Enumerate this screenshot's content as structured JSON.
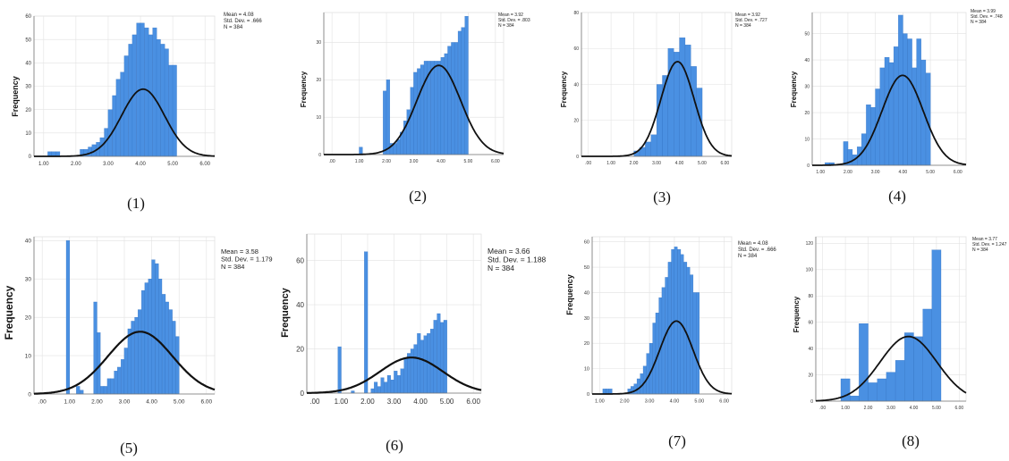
{
  "colors": {
    "bar": "#4a90e2",
    "bar_edge": "#2f6fc0",
    "curve": "#111111",
    "axis": "#777777",
    "grid": "#e2e2e2"
  },
  "chart_data": [
    {
      "type": "bar",
      "panel_label": "(1)",
      "ylabel": "Frequency",
      "xticks": [
        "1.00",
        "2.00",
        "3.00",
        "4.00",
        "5.00",
        "6.00"
      ],
      "yticks": [
        "0",
        "10",
        "20",
        "30",
        "40",
        "50",
        "60"
      ],
      "xlim": [
        0.7,
        6.3
      ],
      "ylim": [
        0,
        60
      ],
      "bin_width": 0.125,
      "x": [
        1.19,
        1.31,
        1.44,
        2.19,
        2.31,
        2.44,
        2.56,
        2.69,
        2.81,
        2.94,
        3.06,
        3.19,
        3.31,
        3.44,
        3.56,
        3.69,
        3.81,
        3.94,
        4.06,
        4.19,
        4.31,
        4.44,
        4.56,
        4.69,
        4.81,
        4.94,
        5.06
      ],
      "values": [
        2,
        2,
        2,
        3,
        3,
        4,
        5,
        6,
        8,
        12,
        20,
        26,
        33,
        36,
        43,
        48,
        52,
        57,
        57,
        55,
        52,
        55,
        50,
        48,
        46,
        39,
        39
      ],
      "curve": {
        "mean": 4.08,
        "sd": 0.666,
        "n": 384
      },
      "stats": [
        "Mean = 4.08",
        "Std. Dev. = .666",
        "N = 384"
      ]
    },
    {
      "type": "bar",
      "panel_label": "(2)",
      "ylabel": "Frequency",
      "xticks": [
        ".00",
        "1.00",
        "2.00",
        "3.00",
        "4.00",
        "5.00",
        "6.00"
      ],
      "yticks": [
        "0",
        "10",
        "20",
        "30"
      ],
      "xlim": [
        -0.3,
        6.3
      ],
      "ylim": [
        0,
        38
      ],
      "bin_width": 0.125,
      "x": [
        1.06,
        1.94,
        2.06,
        2.19,
        2.31,
        2.44,
        2.56,
        2.69,
        2.81,
        2.94,
        3.06,
        3.19,
        3.31,
        3.44,
        3.56,
        3.69,
        3.81,
        3.94,
        4.06,
        4.19,
        4.31,
        4.44,
        4.56,
        4.69,
        4.81,
        4.94
      ],
      "values": [
        2,
        17,
        20,
        3,
        3,
        4,
        6,
        9,
        12,
        18,
        22,
        23,
        24,
        25,
        25,
        25,
        25,
        25,
        26,
        27,
        29,
        30,
        30,
        33,
        34,
        37
      ],
      "curve": {
        "mean": 3.92,
        "sd": 0.803,
        "n": 384
      },
      "stats": [
        "Mean = 3.92",
        "Std. Dev. = .803",
        "N = 384"
      ]
    },
    {
      "type": "bar",
      "panel_label": "(3)",
      "ylabel": "Frequency",
      "xticks": [
        ".00",
        "1.00",
        "2.00",
        "3.00",
        "4.00",
        "5.00",
        "6.00"
      ],
      "yticks": [
        "0",
        "20",
        "40",
        "60",
        "80"
      ],
      "xlim": [
        -0.3,
        6.3
      ],
      "ylim": [
        0,
        80
      ],
      "bin_width": 0.25,
      "x": [
        2.13,
        2.38,
        2.63,
        2.88,
        3.13,
        3.38,
        3.63,
        3.88,
        4.13,
        4.38,
        4.63,
        4.88
      ],
      "values": [
        3,
        5,
        8,
        12,
        40,
        45,
        60,
        58,
        66,
        62,
        50,
        38
      ],
      "curve": {
        "mean": 3.92,
        "sd": 0.727,
        "n": 384
      },
      "stats": [
        "Mean = 3.92",
        "Std. Dev. = .727",
        "N = 384"
      ]
    },
    {
      "type": "bar",
      "panel_label": "(4)",
      "ylabel": "Frequency",
      "xticks": [
        "1.00",
        "2.00",
        "3.00",
        "4.00",
        "5.00",
        "6.00"
      ],
      "yticks": [
        "0",
        "10",
        "20",
        "30",
        "40",
        "50"
      ],
      "xlim": [
        0.7,
        6.3
      ],
      "ylim": [
        0,
        58
      ],
      "bin_width": 0.1667,
      "x": [
        1.25,
        1.42,
        1.92,
        2.08,
        2.25,
        2.42,
        2.58,
        2.75,
        2.92,
        3.08,
        3.25,
        3.42,
        3.58,
        3.75,
        3.92,
        4.08,
        4.25,
        4.42,
        4.58,
        4.75,
        4.92
      ],
      "values": [
        1,
        1,
        9,
        6,
        4,
        7,
        12,
        23,
        22,
        29,
        37,
        41,
        39,
        45,
        57,
        50,
        48,
        37,
        48,
        40,
        35
      ],
      "curve": {
        "mean": 3.99,
        "sd": 0.748,
        "n": 384
      },
      "stats": [
        "Mean = 3.99",
        "Std. Dev. = .748",
        "N = 384"
      ]
    },
    {
      "type": "bar",
      "panel_label": "(5)",
      "ylabel": "Frequency",
      "xticks": [
        ".00",
        "1.00",
        "2.00",
        "3.00",
        "4.00",
        "5.00",
        "6.00"
      ],
      "yticks": [
        "0",
        "10",
        "20",
        "30",
        "40"
      ],
      "xlim": [
        -0.3,
        6.3
      ],
      "ylim": [
        0,
        41
      ],
      "bin_width": 0.125,
      "x": [
        0.94,
        1.31,
        1.44,
        1.94,
        2.06,
        2.19,
        2.31,
        2.44,
        2.56,
        2.69,
        2.81,
        2.94,
        3.06,
        3.19,
        3.31,
        3.44,
        3.56,
        3.69,
        3.81,
        3.94,
        4.06,
        4.19,
        4.31,
        4.44,
        4.56,
        4.69,
        4.81,
        4.94
      ],
      "values": [
        40,
        2,
        1,
        24,
        16,
        2,
        2,
        4,
        4,
        6,
        7,
        9,
        12,
        17,
        19,
        20,
        22,
        27,
        29,
        30,
        35,
        34,
        30,
        26,
        24,
        22,
        19,
        15
      ],
      "curve": {
        "mean": 3.58,
        "sd": 1.179,
        "n": 384
      },
      "stats": [
        "Mean = 3.58",
        "Std. Dev. = 1.179",
        "N = 384"
      ]
    },
    {
      "type": "bar",
      "panel_label": "(6)",
      "ylabel": "Frequency",
      "xticks": [
        ".00",
        "1.00",
        "2.00",
        "3.00",
        "4.00",
        "5.00",
        "6.00"
      ],
      "yticks": [
        "0",
        "20",
        "40",
        "60"
      ],
      "xlim": [
        -0.3,
        6.3
      ],
      "ylim": [
        0,
        72
      ],
      "bin_width": 0.125,
      "x": [
        0.94,
        1.44,
        1.94,
        2.19,
        2.31,
        2.44,
        2.56,
        2.69,
        2.81,
        2.94,
        3.06,
        3.19,
        3.31,
        3.44,
        3.56,
        3.69,
        3.81,
        3.94,
        4.06,
        4.19,
        4.31,
        4.44,
        4.56,
        4.69,
        4.81,
        4.94
      ],
      "values": [
        21,
        1,
        64,
        2,
        5,
        3,
        7,
        5,
        8,
        6,
        10,
        8,
        11,
        16,
        18,
        20,
        22,
        27,
        24,
        26,
        27,
        29,
        33,
        36,
        32,
        33
      ],
      "curve": {
        "mean": 3.66,
        "sd": 1.188,
        "n": 384
      },
      "stats": [
        "Mean = 3.66",
        "Std. Dev. = 1.188",
        "N = 384"
      ]
    },
    {
      "type": "bar",
      "panel_label": "(7)",
      "ylabel": "Frequency",
      "xticks": [
        "1.00",
        "2.00",
        "3.00",
        "4.00",
        "5.00",
        "6.00"
      ],
      "yticks": [
        "0",
        "10",
        "20",
        "30",
        "40",
        "50",
        "60"
      ],
      "xlim": [
        0.7,
        6.3
      ],
      "ylim": [
        0,
        62
      ],
      "bin_width": 0.125,
      "x": [
        1.19,
        1.31,
        1.44,
        2.19,
        2.31,
        2.44,
        2.56,
        2.69,
        2.81,
        2.94,
        3.06,
        3.19,
        3.31,
        3.44,
        3.56,
        3.69,
        3.81,
        3.94,
        4.06,
        4.19,
        4.31,
        4.44,
        4.56,
        4.69,
        4.81,
        4.94
      ],
      "values": [
        2,
        2,
        2,
        2,
        3,
        4,
        6,
        8,
        11,
        16,
        20,
        28,
        32,
        38,
        42,
        46,
        52,
        57,
        58,
        57,
        55,
        52,
        50,
        47,
        40,
        40
      ],
      "curve": {
        "mean": 4.08,
        "sd": 0.666,
        "n": 384
      },
      "stats": [
        "Mean = 4.08",
        "Std. Dev. = .666",
        "N = 384"
      ]
    },
    {
      "type": "bar",
      "panel_label": "(8)",
      "ylabel": "Frequency",
      "xticks": [
        ".00",
        "1.00",
        "2.00",
        "3.00",
        "4.00",
        "5.00",
        "6.00"
      ],
      "yticks": [
        "0",
        "20",
        "40",
        "60",
        "80",
        "100",
        "120"
      ],
      "xlim": [
        -0.3,
        6.3
      ],
      "ylim": [
        0,
        125
      ],
      "bin_width": 0.4,
      "x": [
        1.0,
        1.4,
        1.8,
        2.2,
        2.6,
        3.0,
        3.4,
        3.8,
        4.2,
        4.6,
        5.0
      ],
      "values": [
        17,
        4,
        59,
        14,
        17,
        22,
        31,
        52,
        49,
        70,
        115
      ],
      "curve": {
        "mean": 3.77,
        "sd": 1.247,
        "n": 384
      },
      "stats": [
        "Mean = 3.77",
        "Std. Dev. = 1.247",
        "N = 384"
      ]
    }
  ]
}
